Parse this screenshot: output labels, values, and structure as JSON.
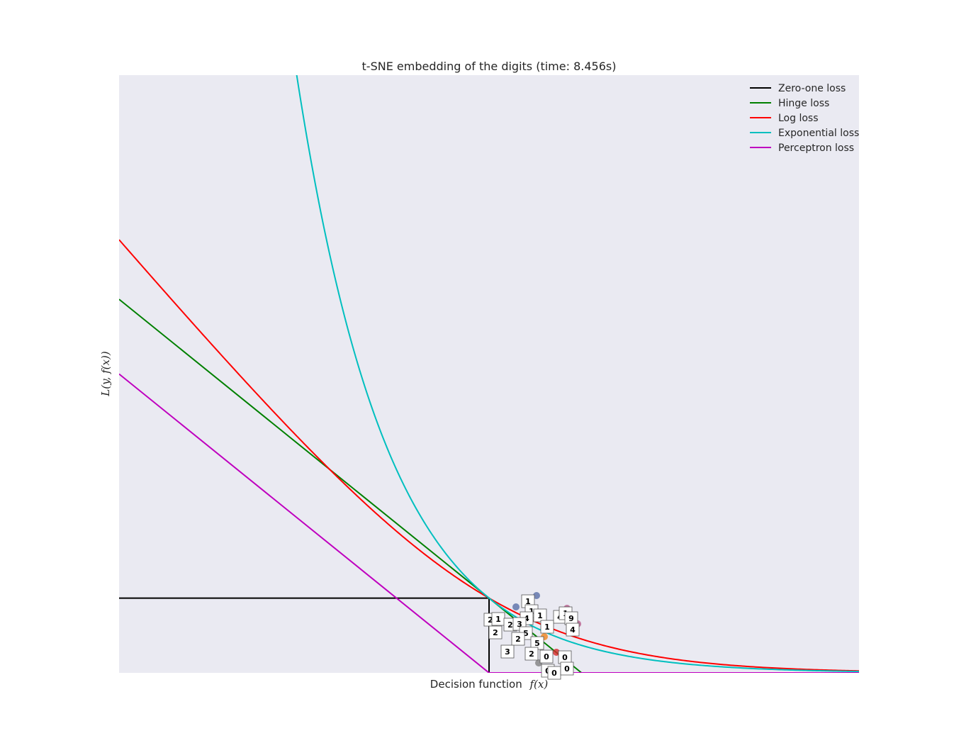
{
  "chart_data": {
    "type": "line",
    "title": "t-SNE embedding of the digits (time: 8.456s)",
    "xlabel": "Decision function",
    "xlabel_math": "f(x)",
    "ylabel_math": "L(y, f(x))",
    "xlim": [
      -4,
      4
    ],
    "ylim": [
      0,
      8
    ],
    "grid": false,
    "background": "#eaeaf2",
    "legend": {
      "position": "top-right",
      "entries": [
        {
          "name": "Zero-one loss",
          "color": "#000000"
        },
        {
          "name": "Hinge loss",
          "color": "#008000"
        },
        {
          "name": "Log loss",
          "color": "#ff0000"
        },
        {
          "name": "Exponential loss",
          "color": "#00bfbf"
        },
        {
          "name": "Perceptron loss",
          "color": "#bf00bf"
        }
      ]
    },
    "series": [
      {
        "name": "Zero-one loss",
        "color": "#000000",
        "x": [
          -4,
          0,
          0,
          4
        ],
        "y": [
          1,
          1,
          0,
          0
        ]
      },
      {
        "name": "Hinge loss",
        "color": "#008000",
        "x": [
          -4,
          1,
          4
        ],
        "y": [
          5,
          0,
          0
        ]
      },
      {
        "name": "Log loss",
        "color": "#ff0000",
        "function": "log2(1+exp(-x))"
      },
      {
        "name": "Exponential loss",
        "color": "#00bfbf",
        "function": "exp(-x)"
      },
      {
        "name": "Perceptron loss",
        "color": "#bf00bf",
        "x": [
          -4,
          0,
          4
        ],
        "y": [
          4,
          0,
          0
        ]
      }
    ],
    "digit_thumbnails": [
      "1",
      "1",
      "2",
      "1",
      "4",
      "1",
      "4",
      "1",
      "9",
      "2",
      "2",
      "3",
      "1",
      "4",
      "5",
      "5",
      "2",
      "3",
      "2",
      "0",
      "0",
      "0",
      "0",
      "0"
    ]
  }
}
